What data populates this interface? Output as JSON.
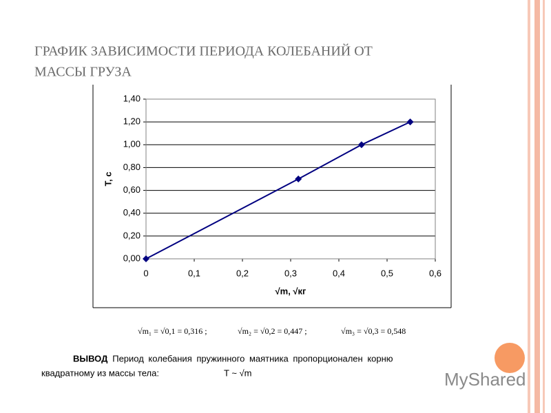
{
  "slide": {
    "title_lines": [
      "ГРАФИК ЗАВИСИМОСТИ ПЕРИОДА КОЛЕБАНИЙ ОТ",
      "МАССЫ ГРУЗА"
    ],
    "formulas": [
      "√m₁ = √0,1 = 0,316 ;",
      "√m₂ = √0,2 = 0,447 ;",
      "√m₃ = √0,3 = 0,548"
    ],
    "conclusion_label": "ВЫВОД",
    "conclusion_line1": ": Период колебания пружинного маятника пропорционален корню",
    "conclusion_line2": "квадратному из массы тела:",
    "conclusion_formula": "T ~ √m",
    "watermark": "MyShared"
  },
  "chart_data": {
    "type": "line",
    "x": [
      0,
      0.316,
      0.447,
      0.548
    ],
    "values": [
      0,
      0.7,
      1.0,
      1.2
    ],
    "color": "#000080",
    "x_label": "√m, √кг",
    "y_label": "T, c",
    "xlim": [
      0,
      0.6
    ],
    "xticks": [
      0,
      {
        "value": 0.1,
        "label": "0,1"
      },
      {
        "value": 0.2,
        "label": "0,2"
      },
      {
        "value": 0.3,
        "label": "0,3"
      },
      {
        "value": 0.4,
        "label": "0,4"
      },
      {
        "value": 0.5,
        "label": "0,5"
      },
      {
        "value": 0.6,
        "label": "0,6"
      }
    ],
    "ylim": [
      0,
      1.4
    ],
    "yticks": [
      {
        "value": 0,
        "label": "0,00"
      },
      {
        "value": 0.2,
        "label": "0,20"
      },
      {
        "value": 0.4,
        "label": "0,40"
      },
      {
        "value": 0.6,
        "label": "0,60"
      },
      {
        "value": 0.8,
        "label": "0,80"
      },
      {
        "value": 1.0,
        "label": "1,00"
      },
      {
        "value": 1.2,
        "label": "1,20"
      },
      {
        "value": 1.4,
        "label": "1,40"
      }
    ],
    "grid": true
  }
}
